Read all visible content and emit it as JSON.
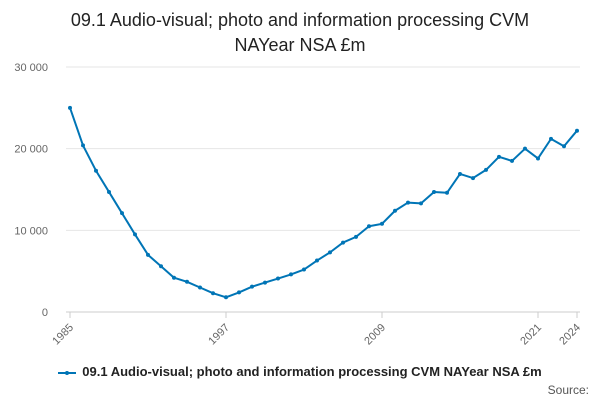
{
  "chart_data": {
    "type": "line",
    "title": "09.1 Audio-visual; photo and information processing CVM NAYear NSA £m",
    "title_lines": [
      "09.1 Audio-visual; photo and information processing CVM",
      "NAYear NSA £m"
    ],
    "xlabel": "",
    "ylabel": "",
    "x": [
      1985,
      1986,
      1987,
      1988,
      1989,
      1990,
      1991,
      1992,
      1993,
      1994,
      1995,
      1996,
      1997,
      1998,
      1999,
      2000,
      2001,
      2002,
      2003,
      2004,
      2005,
      2006,
      2007,
      2008,
      2009,
      2010,
      2011,
      2012,
      2013,
      2014,
      2015,
      2016,
      2017,
      2018,
      2019,
      2020,
      2021,
      2022,
      2023,
      2024
    ],
    "series": [
      {
        "name": "09.1 Audio-visual; photo and information processing CVM NAYear NSA £m",
        "color": "#0075b6",
        "values": [
          25000,
          20400,
          17300,
          14700,
          12100,
          9500,
          7000,
          5600,
          4200,
          3700,
          3000,
          2300,
          1800,
          2400,
          3100,
          3600,
          4100,
          4600,
          5200,
          6300,
          7300,
          8500,
          9200,
          10500,
          10800,
          12400,
          13400,
          13300,
          14700,
          14600,
          16900,
          16400,
          17400,
          19000,
          18500,
          20000,
          18800,
          21200,
          20300,
          22200
        ]
      }
    ],
    "y_ticks": [
      0,
      10000,
      20000,
      30000
    ],
    "y_tick_labels": [
      "0",
      "10 000",
      "20 000",
      "30 000"
    ],
    "x_tick_labels": [
      "1985",
      "1997",
      "2009",
      "2021",
      "2024"
    ],
    "x_tick_values": [
      1985,
      1997,
      2009,
      2021,
      2024
    ],
    "xlim": [
      1985,
      2024
    ],
    "ylim": [
      0,
      30000
    ],
    "grid": "horizontal",
    "legend_position": "bottom"
  },
  "legend": {
    "label": "09.1 Audio-visual; photo and information processing CVM NAYear NSA £m"
  },
  "source": {
    "label": "Source:"
  }
}
